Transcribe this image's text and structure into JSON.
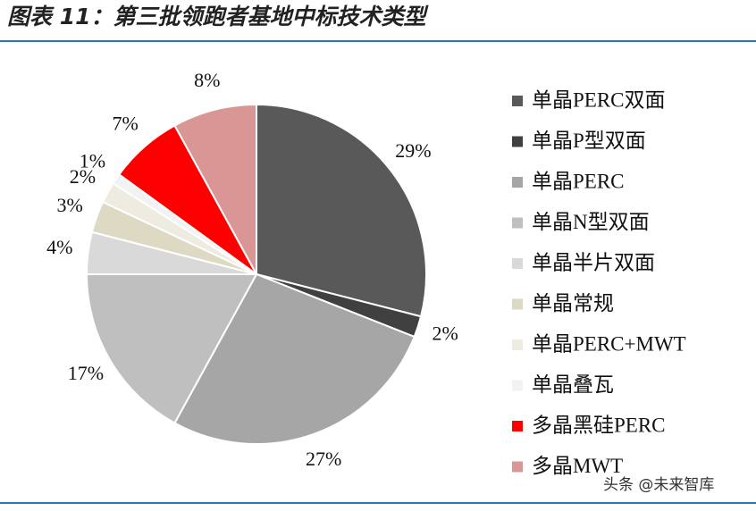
{
  "chart_data": {
    "type": "pie",
    "title": "图表 11：第三批领跑者基地中标技术类型",
    "categories": [
      "单晶PERC双面",
      "单晶P型双面",
      "单晶PERC",
      "单晶N型双面",
      "单晶半片双面",
      "单晶常规",
      "单晶PERC+MWT",
      "单晶叠瓦",
      "多晶黑硅PERC",
      "多晶MWT"
    ],
    "values": [
      29,
      2,
      27,
      17,
      4,
      3,
      2,
      1,
      7,
      8
    ],
    "value_labels": [
      "29%",
      "2%",
      "27%",
      "17%",
      "4%",
      "3%",
      "2%",
      "1%",
      "7%",
      "8%"
    ],
    "colors": [
      "#595959",
      "#404040",
      "#a6a6a6",
      "#bfbfbf",
      "#d9d9d9",
      "#ddd9c3",
      "#eeece1",
      "#f2f2f2",
      "#ff0000",
      "#d99694"
    ],
    "legend": "right",
    "watermark": "头条 @未来智库"
  }
}
